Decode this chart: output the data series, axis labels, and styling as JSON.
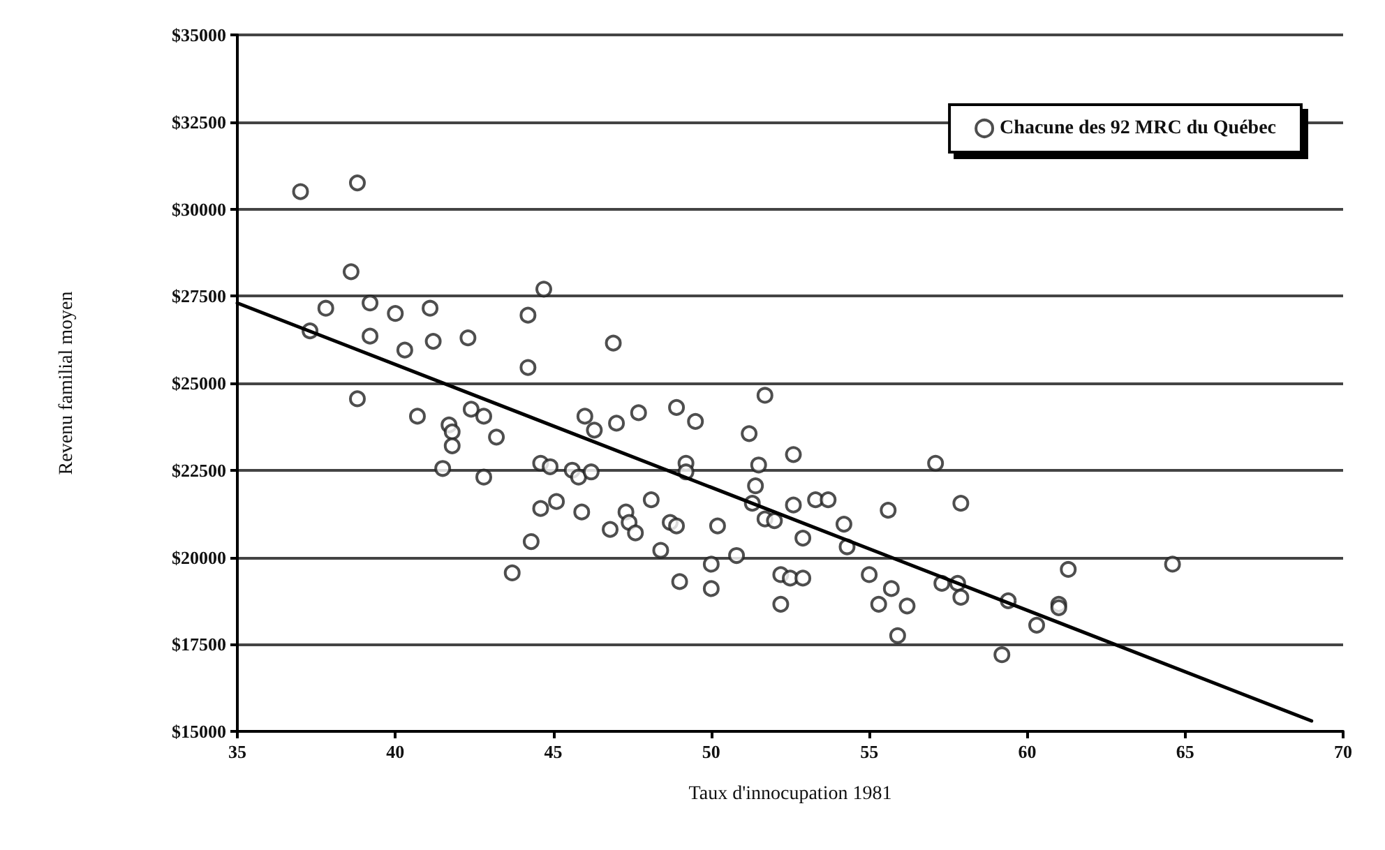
{
  "chart_data": {
    "type": "scatter",
    "xlabel": "Taux d'innocupation 1981",
    "ylabel": "Revenu familial moyen",
    "xlim": [
      35,
      70
    ],
    "xticks": [
      35,
      40,
      45,
      50,
      55,
      60,
      65,
      70
    ],
    "ylim": [
      15000,
      35000
    ],
    "yticks": [
      {
        "value": 15000,
        "label": "$15000"
      },
      {
        "value": 17500,
        "label": "$17500"
      },
      {
        "value": 20000,
        "label": "$20000"
      },
      {
        "value": 22500,
        "label": "$22500"
      },
      {
        "value": 25000,
        "label": "$25000"
      },
      {
        "value": 27500,
        "label": "$27500"
      },
      {
        "value": 30000,
        "label": "$30000"
      },
      {
        "value": 32500,
        "label": "$32500"
      },
      {
        "value": 35000,
        "label": "$35000"
      }
    ],
    "grid": "y",
    "legend": "top right",
    "marker": "circle",
    "series": [
      {
        "name": "Chacune des 92 MRC du Québec",
        "color": "#222222",
        "x": [
          37.0,
          38.8,
          38.6,
          37.8,
          39.2,
          40.0,
          41.1,
          44.7,
          44.2,
          37.3,
          39.2,
          40.3,
          41.2,
          42.3,
          44.2,
          38.8,
          40.7,
          42.4,
          42.8,
          41.7,
          41.8,
          43.2,
          41.8,
          46.9,
          51.7,
          46.0,
          46.3,
          47.0,
          47.7,
          48.9,
          49.5,
          51.2,
          52.6,
          44.6,
          44.9,
          45.6,
          45.8,
          46.2,
          49.2,
          49.2,
          51.5,
          51.4,
          57.1,
          44.6,
          45.1,
          45.9,
          47.3,
          48.1,
          46.8,
          47.4,
          47.6,
          48.7,
          48.9,
          50.2,
          51.3,
          51.7,
          52.0,
          52.6,
          53.3,
          53.7,
          52.9,
          54.2,
          54.3,
          55.6,
          44.3,
          48.4,
          50.0,
          50.8,
          49.0,
          50.0,
          52.2,
          52.5,
          52.9,
          52.2,
          55.0,
          55.7,
          55.3,
          56.2,
          55.9,
          57.9,
          61.3,
          64.6,
          57.3,
          57.8,
          57.9,
          59.4,
          61.0,
          61.0,
          60.3,
          59.2,
          41.5,
          42.8,
          43.7
        ],
        "values": [
          30500,
          30750,
          28200,
          27150,
          27300,
          27000,
          27150,
          27700,
          26950,
          26500,
          26350,
          25950,
          26200,
          26300,
          25450,
          24550,
          24050,
          24250,
          24050,
          23800,
          23600,
          23450,
          23200,
          26150,
          24650,
          24050,
          23650,
          23850,
          24150,
          24300,
          23900,
          23550,
          22950,
          22700,
          22600,
          22500,
          22300,
          22450,
          22700,
          22450,
          22650,
          22050,
          22700,
          21400,
          21600,
          21300,
          21300,
          21650,
          20800,
          21000,
          20700,
          21000,
          20900,
          20900,
          21550,
          21100,
          21050,
          21500,
          21650,
          21650,
          20550,
          20950,
          20300,
          21350,
          20450,
          20200,
          19800,
          20050,
          19300,
          19100,
          19500,
          19400,
          19400,
          18650,
          19500,
          19100,
          18650,
          18600,
          17750,
          21550,
          19650,
          19800,
          19250,
          19250,
          18850,
          18750,
          18650,
          18550,
          18050,
          17200,
          22550,
          22300,
          19550
        ]
      },
      {
        "type": "line",
        "color": "#000000",
        "x": [
          35,
          69
        ],
        "values": [
          27300,
          15300
        ],
        "marker": "none"
      }
    ]
  }
}
